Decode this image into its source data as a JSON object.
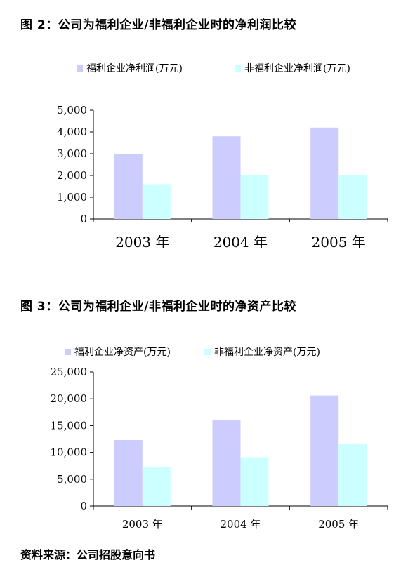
{
  "figure1": {
    "title": "图 2：公司为福利企业/非福利企业时的净利润比较"
  },
  "figure2": {
    "title": "图 3：公司为福利企业/非福利企业时的净资产比较"
  },
  "source": "资料来源：公司招股意向书",
  "colors": {
    "series_a": "#ccccff",
    "series_b": "#ccffff",
    "axis": "#000000"
  },
  "chart_data": [
    {
      "type": "bar",
      "title": "图 2：公司为福利企业/非福利企业时的净利润比较",
      "categories": [
        "2003 年",
        "2004 年",
        "2005 年"
      ],
      "series": [
        {
          "name": "福利企业净利润(万元)",
          "values": [
            3000,
            3800,
            4200
          ]
        },
        {
          "name": "非福利企业净利润(万元)",
          "values": [
            1600,
            2000,
            2000
          ]
        }
      ],
      "ylim": [
        0,
        5000
      ],
      "yticks": [
        0,
        1000,
        2000,
        3000,
        4000,
        5000
      ],
      "ytick_labels": [
        "0",
        "1,000",
        "2,000",
        "3,000",
        "4,000",
        "5,000"
      ],
      "legend": "top",
      "grid": false
    },
    {
      "type": "bar",
      "title": "图 3：公司为福利企业/非福利企业时的净资产比较",
      "categories": [
        "2003 年",
        "2004 年",
        "2005 年"
      ],
      "series": [
        {
          "name": "福利企业净资产(万元)",
          "values": [
            12300,
            16100,
            20600
          ]
        },
        {
          "name": "非福利企业净资产(万元)",
          "values": [
            7200,
            9100,
            11600
          ]
        }
      ],
      "ylim": [
        0,
        25000
      ],
      "yticks": [
        0,
        5000,
        10000,
        15000,
        20000,
        25000
      ],
      "ytick_labels": [
        "0",
        "5,000",
        "10,000",
        "15,000",
        "20,000",
        "25,000"
      ],
      "legend": "top",
      "grid": false
    }
  ]
}
